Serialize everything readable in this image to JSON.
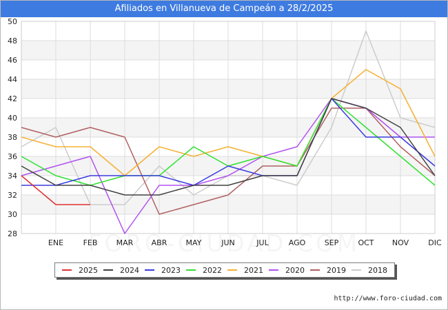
{
  "header": {
    "title": "Afiliados en Villanueva de Campeán a 28/2/2025"
  },
  "footer": {
    "source": "http://www.foro-ciudad.com"
  },
  "watermark": "FORO-CIUDAD.COM",
  "chart_data": {
    "type": "line",
    "title": "Afiliados en Villanueva de Campeán a 28/2/2025",
    "categories": [
      "",
      "ENE",
      "FEB",
      "MAR",
      "ABR",
      "MAY",
      "JUN",
      "JUL",
      "AGO",
      "SEP",
      "OCT",
      "NOV",
      "DIC"
    ],
    "ylim": [
      28,
      50
    ],
    "yticks": [
      28,
      30,
      32,
      34,
      36,
      38,
      40,
      42,
      44,
      46,
      48,
      50
    ],
    "grid": true,
    "legend_position": "bottom",
    "series": [
      {
        "name": "2025",
        "color": "#e03030",
        "values": [
          34,
          31,
          31,
          null,
          null,
          null,
          null,
          null,
          null,
          null,
          null,
          null,
          null
        ]
      },
      {
        "name": "2024",
        "color": "#404040",
        "values": [
          35,
          33,
          33,
          32,
          32,
          33,
          33,
          34,
          34,
          42,
          41,
          39,
          34
        ]
      },
      {
        "name": "2023",
        "color": "#3a3ae0",
        "values": [
          33,
          33,
          34,
          34,
          34,
          33,
          35,
          34,
          34,
          42,
          38,
          38,
          35
        ]
      },
      {
        "name": "2022",
        "color": "#30e030",
        "values": [
          36,
          34,
          33,
          34,
          34,
          37,
          35,
          36,
          35,
          42,
          39,
          36,
          33
        ]
      },
      {
        "name": "2021",
        "color": "#f5b030",
        "values": [
          38,
          37,
          37,
          34,
          37,
          36,
          37,
          36,
          35,
          42,
          45,
          43,
          36
        ]
      },
      {
        "name": "2020",
        "color": "#b050f0",
        "values": [
          34,
          35,
          36,
          28,
          33,
          33,
          34,
          36,
          37,
          42,
          41,
          38,
          38
        ]
      },
      {
        "name": "2019",
        "color": "#b06060",
        "values": [
          39,
          38,
          39,
          38,
          30,
          31,
          32,
          35,
          35,
          41,
          41,
          37,
          34
        ]
      },
      {
        "name": "2018",
        "color": "#cccccc",
        "values": [
          37,
          39,
          31,
          31,
          35,
          32,
          34,
          34,
          33,
          39,
          49,
          40,
          39
        ]
      }
    ]
  }
}
